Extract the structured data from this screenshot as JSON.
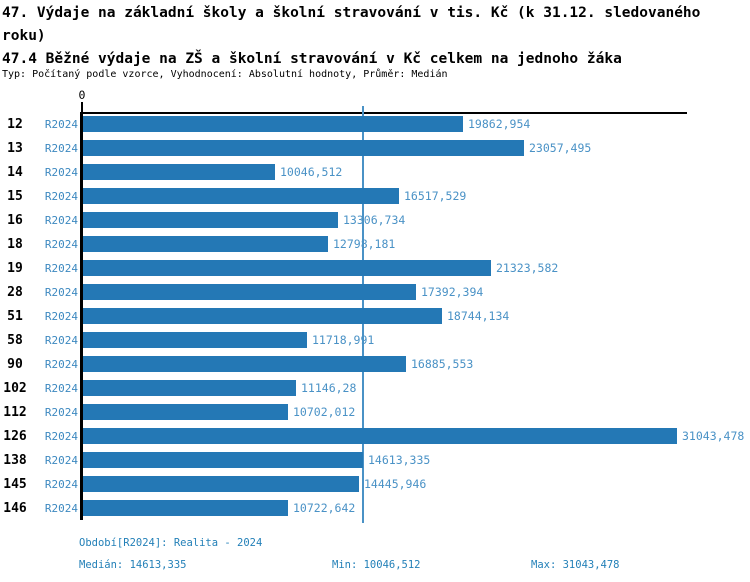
{
  "title": {
    "main": "47. Výdaje na základní školy a školní stravování v tis. Kč (k 31.12. sledovaného roku)",
    "sub": "47.4 Běžné výdaje na ZŠ a školní stravování v Kč celkem na jednoho žáka",
    "meta": "Typ: Počítaný podle vzorce, Vyhodnocení: Absolutní hodnoty, Průměr: Medián"
  },
  "axis": {
    "zero_label": "0"
  },
  "chart_data": {
    "type": "bar",
    "orientation": "horizontal",
    "title": "47.4 Běžné výdaje na ZŠ a školní stravování v Kč celkem na jednoho žáka",
    "categories": [
      "12",
      "13",
      "14",
      "15",
      "16",
      "18",
      "19",
      "28",
      "51",
      "58",
      "90",
      "102",
      "112",
      "126",
      "138",
      "145",
      "146"
    ],
    "series": [
      {
        "name": "R2024",
        "values": [
          19862.954,
          23057.495,
          10046.512,
          16517.529,
          13306.734,
          12798.181,
          21323.582,
          17392.394,
          18744.134,
          11718.991,
          16885.553,
          11146.28,
          10702.012,
          31043.478,
          14613.335,
          14445.946,
          10722.642
        ]
      }
    ],
    "value_labels": [
      "19862,954",
      "23057,495",
      "10046,512",
      "16517,529",
      "13306,734",
      "12798,181",
      "21323,582",
      "17392,394",
      "18744,134",
      "11718,991",
      "16885,553",
      "11146,28",
      "10702,012",
      "31043,478",
      "14613,335",
      "14445,946",
      "10722,642"
    ],
    "xlim": [
      0,
      31043.478
    ],
    "median": 14613.335,
    "min": 10046.512,
    "max": 31043.478,
    "grid": false,
    "legend": false
  },
  "footer": {
    "period": "Období[R2024]: Realita - 2024",
    "median": "Medián: 14613,335",
    "min": "Min: 10046,512",
    "max": "Max: 31043,478"
  },
  "colors": {
    "bar": "#2478b5",
    "period_link": "#3d89c0",
    "value_label": "#4a92c6",
    "median_line": "#4a92c6",
    "footer_text": "#2380b8",
    "axis": "#000000"
  }
}
